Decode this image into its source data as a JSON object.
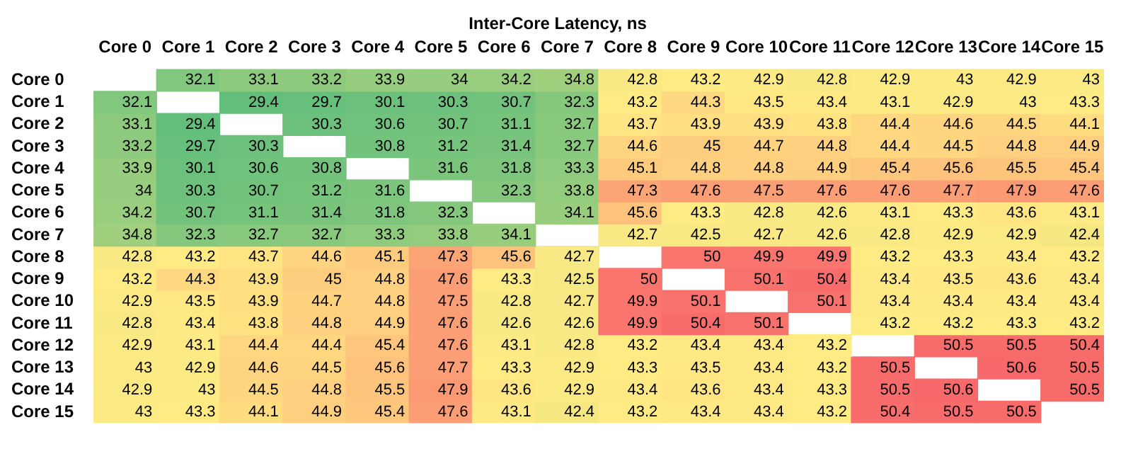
{
  "chart_data": {
    "type": "heatmap",
    "title": "Inter-Core Latency, ns",
    "categories": [
      "Core 0",
      "Core 1",
      "Core 2",
      "Core 3",
      "Core 4",
      "Core 5",
      "Core 6",
      "Core 7",
      "Core 8",
      "Core 9",
      "Core 10",
      "Core 11",
      "Core 12",
      "Core 13",
      "Core 14",
      "Core 15"
    ],
    "y_categories": [
      "Core 0",
      "Core 1",
      "Core 2",
      "Core 3",
      "Core 4",
      "Core 5",
      "Core 6",
      "Core 7",
      "Core 8",
      "Core 9",
      "Core 10",
      "Core 11",
      "Core 12",
      "Core 13",
      "Core 14",
      "Core 15"
    ],
    "cells": [
      [
        null,
        32.1,
        33.1,
        33.2,
        33.9,
        34,
        34.2,
        34.8,
        42.8,
        43.2,
        42.9,
        42.8,
        42.9,
        43,
        42.9,
        43
      ],
      [
        32.1,
        null,
        29.4,
        29.7,
        30.1,
        30.3,
        30.7,
        32.3,
        43.2,
        44.3,
        43.5,
        43.4,
        43.1,
        42.9,
        43,
        43.3
      ],
      [
        33.1,
        29.4,
        null,
        30.3,
        30.6,
        30.7,
        31.1,
        32.7,
        43.7,
        43.9,
        43.9,
        43.8,
        44.4,
        44.6,
        44.5,
        44.1
      ],
      [
        33.2,
        29.7,
        30.3,
        null,
        30.8,
        31.2,
        31.4,
        32.7,
        44.6,
        45,
        44.7,
        44.8,
        44.4,
        44.5,
        44.8,
        44.9
      ],
      [
        33.9,
        30.1,
        30.6,
        30.8,
        null,
        31.6,
        31.8,
        33.3,
        45.1,
        44.8,
        44.8,
        44.9,
        45.4,
        45.6,
        45.5,
        45.4
      ],
      [
        34,
        30.3,
        30.7,
        31.2,
        31.6,
        null,
        32.3,
        33.8,
        47.3,
        47.6,
        47.5,
        47.6,
        47.6,
        47.7,
        47.9,
        47.6
      ],
      [
        34.2,
        30.7,
        31.1,
        31.4,
        31.8,
        32.3,
        null,
        34.1,
        45.6,
        43.3,
        42.8,
        42.6,
        43.1,
        43.3,
        43.6,
        43.1
      ],
      [
        34.8,
        32.3,
        32.7,
        32.7,
        33.3,
        33.8,
        34.1,
        null,
        42.7,
        42.5,
        42.7,
        42.6,
        42.8,
        42.9,
        42.9,
        42.4
      ],
      [
        42.8,
        43.2,
        43.7,
        44.6,
        45.1,
        47.3,
        45.6,
        42.7,
        null,
        50,
        49.9,
        49.9,
        43.2,
        43.3,
        43.4,
        43.2
      ],
      [
        43.2,
        44.3,
        43.9,
        45,
        44.8,
        47.6,
        43.3,
        42.5,
        50,
        null,
        50.1,
        50.4,
        43.4,
        43.5,
        43.6,
        43.4
      ],
      [
        42.9,
        43.5,
        43.9,
        44.7,
        44.8,
        47.5,
        42.8,
        42.7,
        49.9,
        50.1,
        null,
        50.1,
        43.4,
        43.4,
        43.4,
        43.4
      ],
      [
        42.8,
        43.4,
        43.8,
        44.8,
        44.9,
        47.6,
        42.6,
        42.6,
        49.9,
        50.4,
        50.1,
        null,
        43.2,
        43.2,
        43.3,
        43.2
      ],
      [
        42.9,
        43.1,
        44.4,
        44.4,
        45.4,
        47.6,
        43.1,
        42.8,
        43.2,
        43.4,
        43.4,
        43.2,
        null,
        50.5,
        50.5,
        50.4
      ],
      [
        43,
        42.9,
        44.6,
        44.5,
        45.6,
        47.7,
        43.3,
        42.9,
        43.3,
        43.5,
        43.4,
        43.2,
        50.5,
        null,
        50.6,
        50.5
      ],
      [
        42.9,
        43,
        44.5,
        44.8,
        45.5,
        47.9,
        43.6,
        42.9,
        43.4,
        43.6,
        43.4,
        43.3,
        50.5,
        50.6,
        null,
        50.5
      ],
      [
        43,
        43.3,
        44.1,
        44.9,
        45.4,
        47.6,
        43.1,
        42.4,
        43.2,
        43.4,
        43.4,
        43.2,
        50.4,
        50.5,
        50.5,
        null
      ]
    ],
    "data_labels": true
  }
}
